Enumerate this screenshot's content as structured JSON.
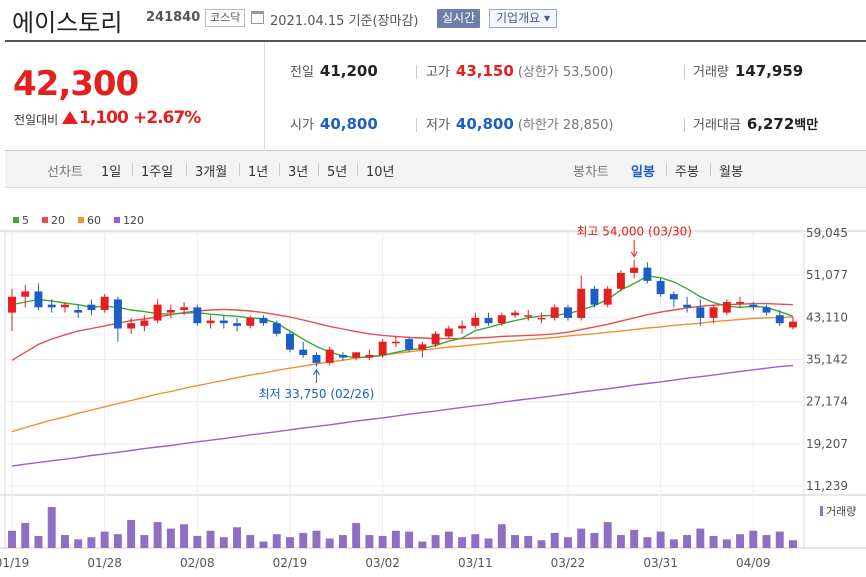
{
  "header": {
    "name": "에이스토리",
    "code": "241840",
    "market": "코스닥",
    "date": "2021.04.15 기준(장마감)",
    "realtime": "실시간",
    "company": "기업개요 ▾"
  },
  "quote": {
    "price": "42,300",
    "change_label": "전일대비",
    "change": "1,100",
    "change_rate": "+2.67%",
    "prev_close_label": "전일",
    "prev_close": "41,200",
    "high_label": "고가",
    "high": "43,150",
    "upper_limit": "(상한가 53,500)",
    "volume_label": "거래량",
    "volume": "147,959",
    "open_label": "시가",
    "open": "40,800",
    "low_label": "저가",
    "low": "40,800",
    "lower_limit": "(하한가 28,850)",
    "amount_label": "거래대금",
    "amount": "6,272",
    "amount_unit": "백만"
  },
  "periods": {
    "line_label": "선차트",
    "line_items": [
      "1일",
      "1주일",
      "3개월",
      "1년",
      "3년",
      "5년",
      "10년"
    ],
    "candle_label": "봉차트",
    "candle_items": [
      "일봉",
      "주봉",
      "월봉"
    ],
    "active_candle": "일봉"
  },
  "colors": {
    "up": "#e51e1e",
    "down": "#1c5fc4",
    "ma5": "#3ca83c",
    "ma20": "#e84c4c",
    "ma60": "#f0922e",
    "ma120": "#9b5fd4",
    "volume": "#8e6fc4"
  },
  "chart_data": {
    "type": "candlestick",
    "legend": [
      {
        "name": "5",
        "color": "#3ca83c"
      },
      {
        "name": "20",
        "color": "#e84c4c"
      },
      {
        "name": "60",
        "color": "#f0922e"
      },
      {
        "name": "120",
        "color": "#9b5fd4"
      }
    ],
    "y_ticks": [
      "59,045",
      "51,077",
      "43,110",
      "35,142",
      "27,174",
      "19,207",
      "11,239"
    ],
    "ylim": [
      11239,
      59045
    ],
    "x_ticks": [
      {
        "label": "01/19",
        "i": 0
      },
      {
        "label": "01/28",
        "i": 7
      },
      {
        "label": "02/08",
        "i": 14
      },
      {
        "label": "02/19",
        "i": 21
      },
      {
        "label": "03/02",
        "i": 28
      },
      {
        "label": "03/11",
        "i": 35
      },
      {
        "label": "03/22",
        "i": 42
      },
      {
        "label": "03/31",
        "i": 49
      },
      {
        "label": "04/09",
        "i": 56
      }
    ],
    "candles": [
      [
        44000,
        48500,
        40500,
        47000
      ],
      [
        47000,
        49200,
        45000,
        48000
      ],
      [
        48000,
        49500,
        44500,
        45000
      ],
      [
        45500,
        46500,
        44000,
        45000
      ],
      [
        45000,
        46000,
        44000,
        45500
      ],
      [
        44500,
        45500,
        43000,
        44000
      ],
      [
        45500,
        46500,
        43500,
        44500
      ],
      [
        44500,
        47500,
        44000,
        47000
      ],
      [
        46500,
        47000,
        38500,
        41000
      ],
      [
        41000,
        43000,
        40000,
        42000
      ],
      [
        41500,
        43500,
        40500,
        42500
      ],
      [
        42500,
        46500,
        42000,
        45500
      ],
      [
        44000,
        45500,
        43000,
        44500
      ],
      [
        44500,
        46000,
        43500,
        45000
      ],
      [
        45000,
        45500,
        41500,
        42000
      ],
      [
        42000,
        43500,
        41000,
        42500
      ],
      [
        42500,
        43500,
        41000,
        42000
      ],
      [
        42000,
        43000,
        40500,
        41500
      ],
      [
        41500,
        43500,
        41000,
        43000
      ],
      [
        43000,
        43500,
        41500,
        42000
      ],
      [
        42000,
        42500,
        39500,
        40000
      ],
      [
        40000,
        40500,
        36500,
        37000
      ],
      [
        37000,
        38500,
        35500,
        36000
      ],
      [
        36000,
        36500,
        33750,
        34500
      ],
      [
        34500,
        37500,
        34000,
        37000
      ],
      [
        36000,
        36500,
        35000,
        35500
      ],
      [
        35500,
        36500,
        35000,
        36500
      ],
      [
        35500,
        37000,
        35000,
        36000
      ],
      [
        36000,
        39000,
        35500,
        38500
      ],
      [
        38500,
        39500,
        37500,
        38500
      ],
      [
        39000,
        39500,
        36500,
        37000
      ],
      [
        37000,
        38500,
        35500,
        38000
      ],
      [
        38000,
        40500,
        37500,
        40000
      ],
      [
        39500,
        41500,
        39000,
        41000
      ],
      [
        41000,
        42500,
        40000,
        41500
      ],
      [
        41500,
        44000,
        41000,
        43000
      ],
      [
        43000,
        44000,
        41500,
        42000
      ],
      [
        42000,
        44000,
        41500,
        43500
      ],
      [
        43500,
        44500,
        43000,
        44000
      ],
      [
        43500,
        44500,
        42500,
        43500
      ],
      [
        43000,
        44000,
        42000,
        43000
      ],
      [
        43000,
        45500,
        42500,
        45000
      ],
      [
        45000,
        45500,
        42500,
        43000
      ],
      [
        43000,
        51000,
        42500,
        48500
      ],
      [
        48500,
        49000,
        45000,
        45500
      ],
      [
        45500,
        49000,
        45000,
        48500
      ],
      [
        48500,
        52000,
        48000,
        51500
      ],
      [
        51500,
        54000,
        50500,
        52500
      ],
      [
        52500,
        53500,
        49500,
        50000
      ],
      [
        50000,
        50500,
        47000,
        47500
      ],
      [
        47500,
        48000,
        45000,
        46500
      ],
      [
        45500,
        47000,
        44000,
        45000
      ],
      [
        45000,
        46500,
        41500,
        43000
      ],
      [
        43000,
        45500,
        42000,
        45000
      ],
      [
        44000,
        46500,
        43500,
        46000
      ],
      [
        46000,
        47000,
        45000,
        46000
      ],
      [
        45500,
        46000,
        44500,
        45000
      ],
      [
        45000,
        45500,
        43500,
        44000
      ],
      [
        43500,
        44500,
        41500,
        42000
      ],
      [
        41200,
        43150,
        40800,
        42300
      ]
    ],
    "ma": {
      "5": [
        45500,
        46000,
        46500,
        46200,
        45800,
        45500,
        45000,
        45200,
        45000,
        44500,
        44200,
        43800,
        43700,
        43900,
        44000,
        43700,
        43500,
        43300,
        43000,
        42800,
        42000,
        40500,
        39000,
        37600,
        36600,
        35800,
        35500,
        35600,
        35900,
        36500,
        37000,
        37200,
        37800,
        38600,
        39200,
        40600,
        41200,
        41900,
        42500,
        43000,
        43400,
        43500,
        43800,
        44500,
        45300,
        46500,
        48300,
        49500,
        50900,
        50600,
        49800,
        48500,
        47000,
        45900,
        45200,
        45000,
        45200,
        45000,
        44200,
        43300
      ],
      "20": [
        35000,
        36500,
        38000,
        39000,
        39800,
        40500,
        41000,
        41500,
        42000,
        42500,
        42800,
        43200,
        43600,
        44000,
        44300,
        44500,
        44600,
        44500,
        44300,
        44000,
        43600,
        43200,
        42600,
        42000,
        41400,
        40900,
        40400,
        40000,
        39700,
        39500,
        39300,
        39200,
        39100,
        39100,
        39100,
        39200,
        39300,
        39500,
        39600,
        39700,
        39800,
        40000,
        40300,
        40800,
        41300,
        41800,
        42400,
        43000,
        43600,
        44100,
        44500,
        44900,
        45200,
        45400,
        45500,
        45600,
        45700,
        45700,
        45600,
        45500
      ],
      "60": [
        21500,
        22300,
        23000,
        23700,
        24300,
        25000,
        25600,
        26200,
        26800,
        27400,
        28000,
        28600,
        29100,
        29700,
        30200,
        30700,
        31200,
        31700,
        32200,
        32600,
        33100,
        33500,
        33900,
        34300,
        34700,
        35000,
        35400,
        35700,
        36000,
        36300,
        36600,
        36900,
        37200,
        37500,
        37700,
        38000,
        38200,
        38500,
        38700,
        38900,
        39100,
        39300,
        39600,
        39800,
        40000,
        40300,
        40500,
        40800,
        41100,
        41300,
        41600,
        41800,
        42000,
        42300,
        42500,
        42700,
        42900,
        43000,
        43100,
        43200
      ],
      "120": [
        15000,
        15350,
        15700,
        16000,
        16300,
        16650,
        17000,
        17300,
        17600,
        17950,
        18300,
        18600,
        18900,
        19250,
        19600,
        19900,
        20200,
        20550,
        20900,
        21200,
        21500,
        21850,
        22200,
        22500,
        22800,
        23150,
        23500,
        23800,
        24100,
        24450,
        24800,
        25100,
        25400,
        25750,
        26100,
        26400,
        26700,
        27050,
        27400,
        27700,
        28000,
        28300,
        28650,
        29000,
        29300,
        29600,
        29950,
        30300,
        30600,
        30900,
        31250,
        31600,
        31900,
        32200,
        32550,
        32900,
        33200,
        33500,
        33800,
        34000
      ]
    },
    "volume": [
      40,
      58,
      28,
      95,
      30,
      20,
      25,
      38,
      32,
      65,
      30,
      60,
      45,
      55,
      28,
      40,
      25,
      48,
      30,
      15,
      32,
      25,
      35,
      40,
      22,
      30,
      58,
      30,
      28,
      40,
      38,
      15,
      30,
      38,
      25,
      32,
      22,
      55,
      30,
      28,
      18,
      35,
      25,
      45,
      35,
      60,
      30,
      42,
      25,
      38,
      20,
      30,
      45,
      28,
      20,
      32,
      40,
      30,
      38,
      18
    ],
    "annotations": [
      {
        "text": "최고 54,000 (03/30)",
        "i": 47,
        "value": 54000,
        "type": "high"
      },
      {
        "text": "최저 33,750 (02/26)",
        "i": 23,
        "value": 33750,
        "type": "low"
      }
    ],
    "volume_label": "거래량"
  }
}
